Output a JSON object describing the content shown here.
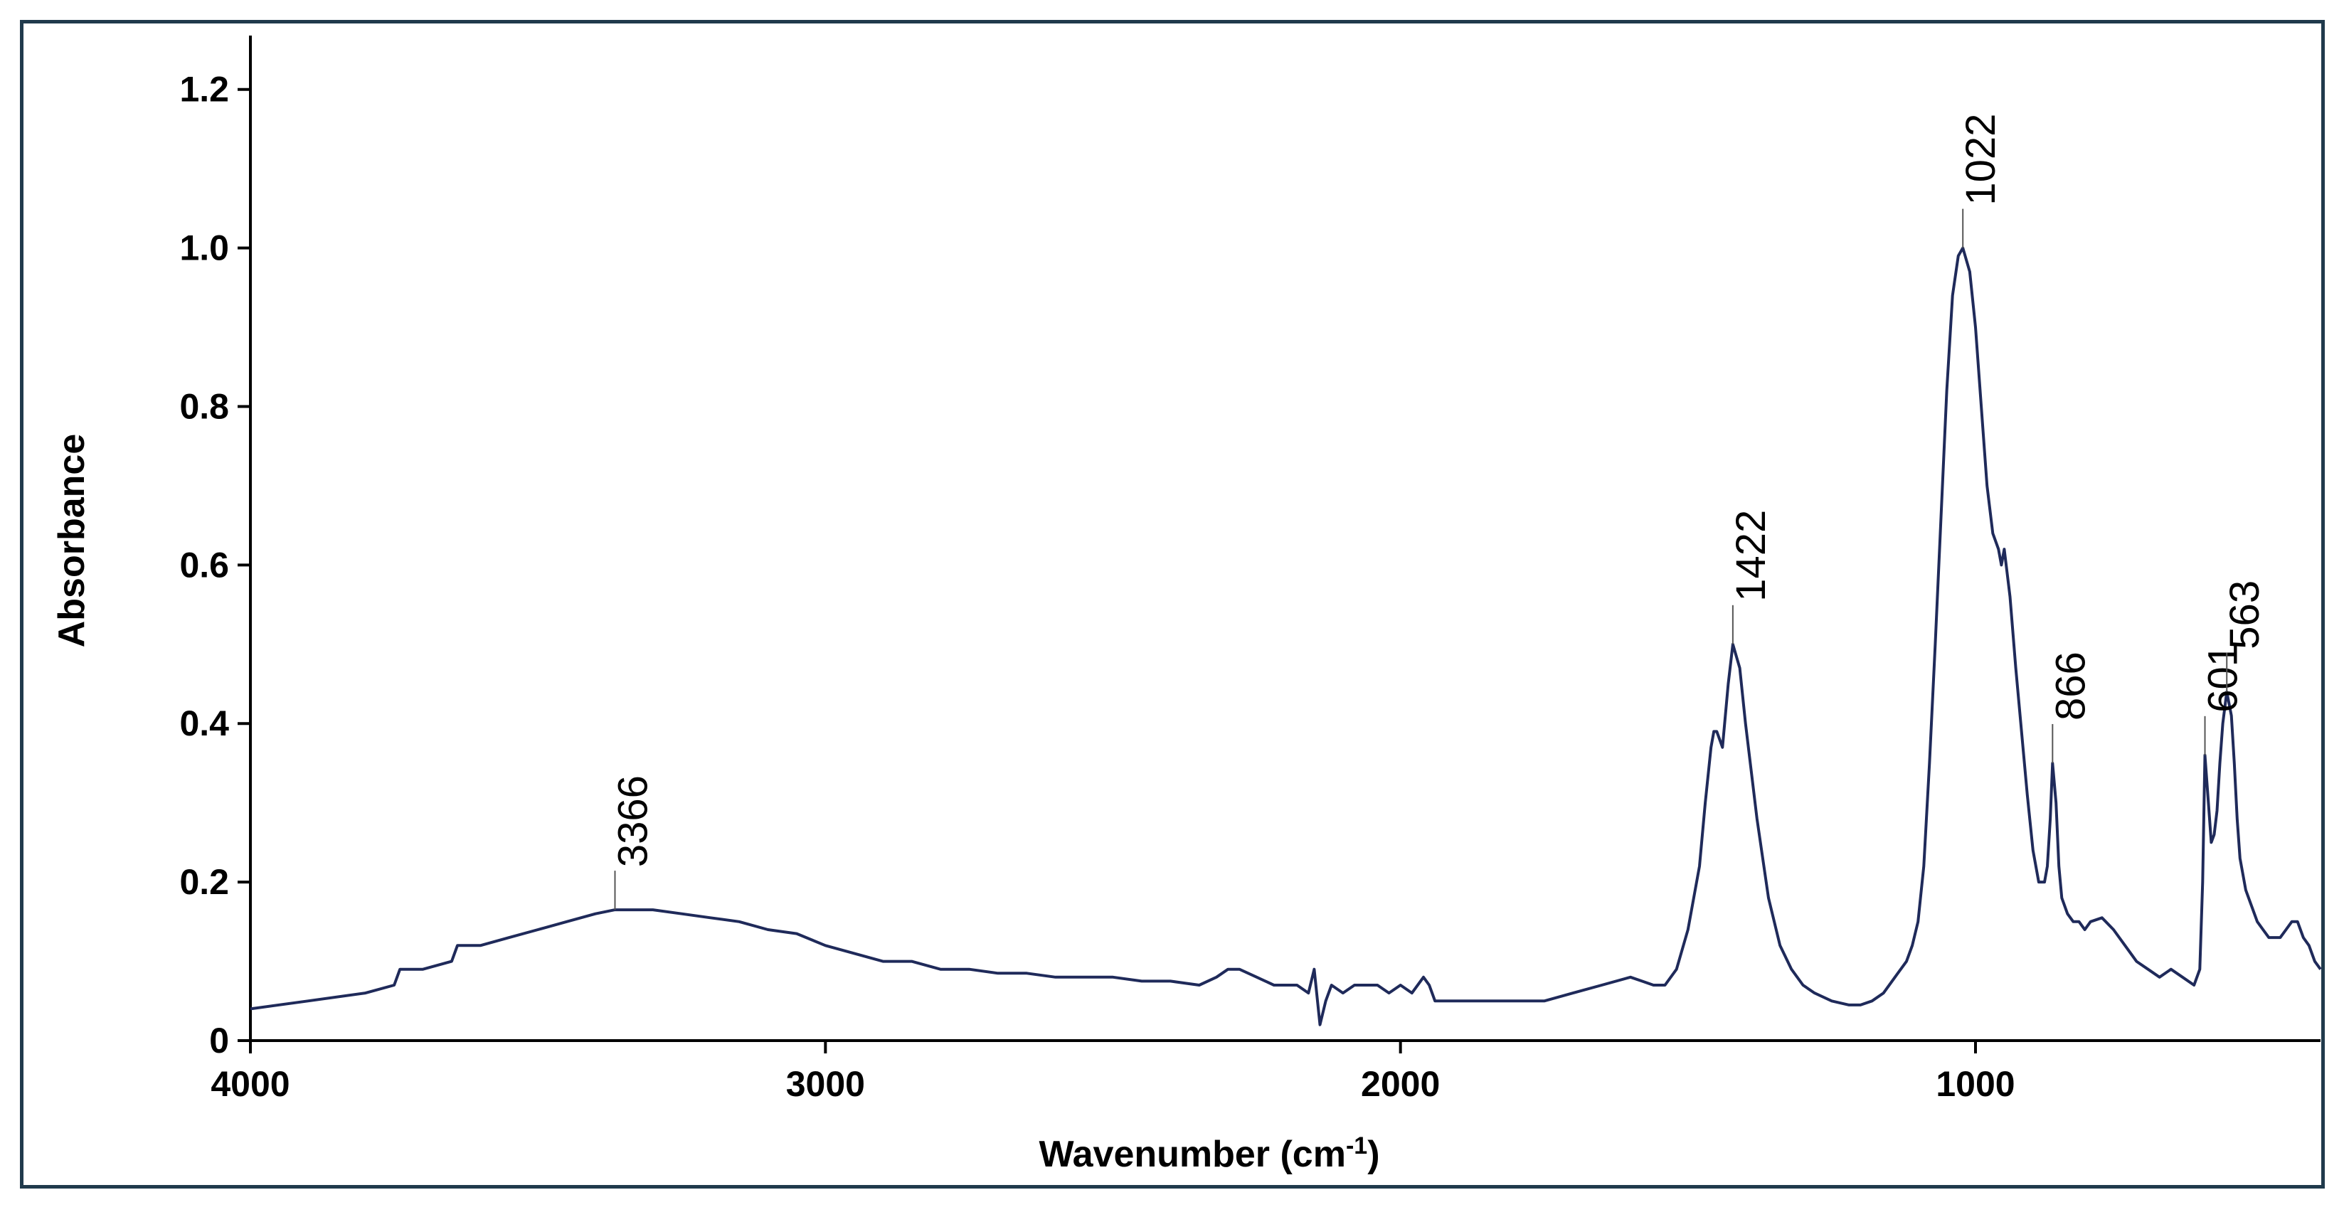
{
  "chart_data": {
    "type": "line",
    "title": "",
    "xlabel": "Wavenumber (cm",
    "xlabel_superscript": "-1",
    "xlabel_suffix": ")",
    "ylabel": "Absorbance",
    "xlim": [
      4000,
      400
    ],
    "ylim": [
      0,
      1.25
    ],
    "x_reversed": true,
    "grid": false,
    "line_color": "#1f2a5a",
    "x_ticks": [
      {
        "value": 4000,
        "label": "4000"
      },
      {
        "value": 3000,
        "label": "3000"
      },
      {
        "value": 2000,
        "label": "2000"
      },
      {
        "value": 1000,
        "label": "1000"
      }
    ],
    "y_ticks": [
      {
        "value": 0,
        "label": "0"
      },
      {
        "value": 0.2,
        "label": "0.2"
      },
      {
        "value": 0.4,
        "label": "0.4"
      },
      {
        "value": 0.6,
        "label": "0.6"
      },
      {
        "value": 0.8,
        "label": "0.8"
      },
      {
        "value": 1.0,
        "label": "1.0"
      },
      {
        "value": 1.2,
        "label": "1.2"
      }
    ],
    "series": [
      {
        "x": [
          4000,
          3900,
          3800,
          3750,
          3740,
          3700,
          3650,
          3640,
          3600,
          3550,
          3500,
          3450,
          3400,
          3366,
          3300,
          3250,
          3200,
          3150,
          3100,
          3050,
          3000,
          2950,
          2900,
          2850,
          2800,
          2750,
          2700,
          2650,
          2600,
          2550,
          2500,
          2450,
          2400,
          2350,
          2320,
          2300,
          2280,
          2250,
          2220,
          2200,
          2180,
          2160,
          2150,
          2140,
          2130,
          2120,
          2100,
          2080,
          2060,
          2040,
          2020,
          2000,
          1980,
          1960,
          1950,
          1940,
          1930,
          1900,
          1850,
          1800,
          1750,
          1700,
          1650,
          1600,
          1580,
          1560,
          1540,
          1520,
          1500,
          1480,
          1470,
          1460,
          1455,
          1450,
          1440,
          1430,
          1422,
          1410,
          1400,
          1380,
          1360,
          1340,
          1320,
          1300,
          1280,
          1250,
          1220,
          1200,
          1180,
          1160,
          1140,
          1120,
          1110,
          1100,
          1090,
          1080,
          1070,
          1060,
          1050,
          1040,
          1030,
          1022,
          1010,
          1000,
          990,
          980,
          970,
          960,
          955,
          950,
          940,
          930,
          920,
          910,
          900,
          890,
          880,
          875,
          870,
          866,
          860,
          855,
          850,
          840,
          830,
          820,
          810,
          800,
          780,
          760,
          740,
          720,
          700,
          680,
          660,
          640,
          620,
          610,
          605,
          601,
          595,
          590,
          585,
          580,
          575,
          570,
          563,
          555,
          550,
          545,
          540,
          530,
          520,
          510,
          500,
          490,
          480,
          470,
          460,
          450,
          440,
          430,
          420,
          410,
          400
        ],
        "y": [
          0.04,
          0.05,
          0.06,
          0.07,
          0.09,
          0.09,
          0.1,
          0.12,
          0.12,
          0.13,
          0.14,
          0.15,
          0.16,
          0.165,
          0.165,
          0.16,
          0.155,
          0.15,
          0.14,
          0.135,
          0.12,
          0.11,
          0.1,
          0.1,
          0.09,
          0.09,
          0.085,
          0.085,
          0.08,
          0.08,
          0.08,
          0.075,
          0.075,
          0.07,
          0.08,
          0.09,
          0.09,
          0.08,
          0.07,
          0.07,
          0.07,
          0.06,
          0.09,
          0.02,
          0.05,
          0.07,
          0.06,
          0.07,
          0.07,
          0.07,
          0.06,
          0.07,
          0.06,
          0.08,
          0.07,
          0.05,
          0.05,
          0.05,
          0.05,
          0.05,
          0.05,
          0.06,
          0.07,
          0.08,
          0.075,
          0.07,
          0.07,
          0.09,
          0.14,
          0.22,
          0.3,
          0.37,
          0.39,
          0.39,
          0.37,
          0.45,
          0.5,
          0.47,
          0.4,
          0.28,
          0.18,
          0.12,
          0.09,
          0.07,
          0.06,
          0.05,
          0.045,
          0.045,
          0.05,
          0.06,
          0.08,
          0.1,
          0.12,
          0.15,
          0.22,
          0.35,
          0.5,
          0.66,
          0.82,
          0.94,
          0.99,
          1.0,
          0.97,
          0.9,
          0.8,
          0.7,
          0.64,
          0.62,
          0.6,
          0.62,
          0.56,
          0.47,
          0.39,
          0.31,
          0.24,
          0.2,
          0.2,
          0.22,
          0.28,
          0.35,
          0.3,
          0.22,
          0.18,
          0.16,
          0.15,
          0.15,
          0.14,
          0.15,
          0.155,
          0.14,
          0.12,
          0.1,
          0.09,
          0.08,
          0.09,
          0.08,
          0.07,
          0.09,
          0.2,
          0.36,
          0.3,
          0.25,
          0.26,
          0.29,
          0.35,
          0.4,
          0.44,
          0.41,
          0.35,
          0.28,
          0.23,
          0.19,
          0.17,
          0.15,
          0.14,
          0.13,
          0.13,
          0.13,
          0.14,
          0.15,
          0.15,
          0.13,
          0.12,
          0.1,
          0.09
        ]
      }
    ],
    "annotations": [
      {
        "x": 3366,
        "y": 0.165,
        "label": "3366"
      },
      {
        "x": 1422,
        "y": 0.5,
        "label": "1422"
      },
      {
        "x": 1022,
        "y": 1.0,
        "label": "1022"
      },
      {
        "x": 866,
        "y": 0.35,
        "label": "866"
      },
      {
        "x": 601,
        "y": 0.36,
        "label": "601"
      },
      {
        "x": 563,
        "y": 0.44,
        "label": "563"
      }
    ]
  }
}
